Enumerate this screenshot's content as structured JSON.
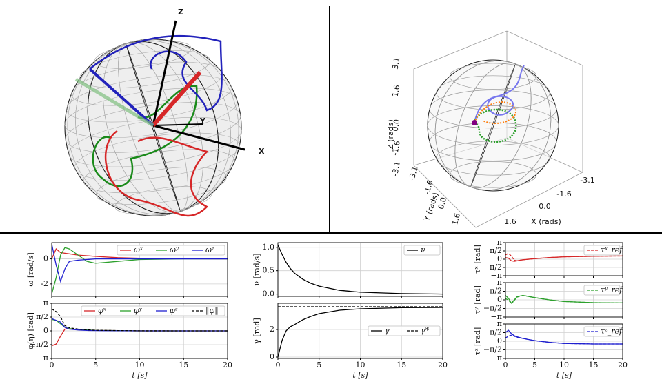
{
  "sphere_left": {
    "axes": [
      "Z",
      "Y",
      "X"
    ]
  },
  "sphere_right": {
    "axis_labels": [
      "Z (rads)",
      "Y (rads)",
      "X (rads)"
    ],
    "z_ticks": [
      "3.1",
      "1.6",
      "0.0",
      "-1.6",
      "-3.1"
    ],
    "y_ticks": [
      "-3.1",
      "-1.6",
      "0.0",
      "1.6"
    ],
    "x_ticks": [
      "1.6",
      "0.0",
      "-1.6",
      "-3.1"
    ]
  },
  "chart_data": [
    {
      "type": "line",
      "ylabel": "ω [rad/s]",
      "x": [
        0,
        0.5,
        1,
        1.5,
        2,
        3,
        4,
        5,
        7.5,
        10,
        15,
        20
      ],
      "xlim": [
        0,
        20
      ],
      "xticks": [
        0,
        5,
        10,
        15,
        20
      ],
      "show_xtick_labels": false,
      "ylim": [
        -3,
        1.3
      ],
      "yticks": [
        -2,
        0
      ],
      "grid": true,
      "legend": "upper right",
      "series": [
        {
          "name": "ωˣ",
          "color": "#d62728",
          "values": [
            0,
            0.8,
            0.5,
            0.45,
            0.4,
            0.3,
            0.25,
            0.2,
            0.1,
            0.05,
            0.01,
            0
          ]
        },
        {
          "name": "ωʸ",
          "color": "#2ca02c",
          "values": [
            -2.8,
            -1.5,
            0.3,
            0.9,
            0.8,
            0.3,
            -0.2,
            -0.35,
            -0.2,
            -0.05,
            0,
            0
          ]
        },
        {
          "name": "ωᶻ",
          "color": "#1f1fcf",
          "values": [
            1.2,
            -0.5,
            -1.8,
            -0.8,
            -0.2,
            -0.1,
            -0.05,
            0,
            0,
            0,
            0,
            0
          ]
        }
      ]
    },
    {
      "type": "line",
      "ylabel": "φ(η) [rad]",
      "xlabel": "t [s]",
      "x": [
        0,
        0.5,
        1,
        1.5,
        2,
        3,
        4,
        5,
        7.5,
        10,
        15,
        20
      ],
      "xlim": [
        0,
        20
      ],
      "xticks": [
        0,
        5,
        10,
        15,
        20
      ],
      "show_xtick_labels": true,
      "ylim": [
        -3.1416,
        3.1416
      ],
      "yticks": [
        {
          "value": -3.1416,
          "label": "−π"
        },
        {
          "value": -1.5708,
          "label": "−π/2"
        },
        0,
        {
          "value": 1.5708,
          "label": "π/2"
        },
        {
          "value": 3.1416,
          "label": "π"
        }
      ],
      "grid": true,
      "legend": "upper right",
      "series": [
        {
          "name": "φˣ",
          "color": "#d62728",
          "values": [
            -1.7,
            -1.5,
            -0.6,
            0.2,
            0.25,
            0.15,
            0.1,
            0.05,
            0.02,
            0,
            0,
            0
          ]
        },
        {
          "name": "φʸ",
          "color": "#2ca02c",
          "values": [
            1.3,
            1.2,
            0.8,
            0.4,
            0.25,
            0.15,
            0.1,
            0.05,
            0.02,
            0,
            0,
            0
          ]
        },
        {
          "name": "φᶻ",
          "color": "#1f1fcf",
          "values": [
            1.4,
            1.2,
            1.0,
            0.4,
            0.2,
            0.1,
            0.05,
            0.03,
            0.01,
            0,
            0,
            0
          ]
        },
        {
          "name": "‖φ‖",
          "color": "#000000",
          "dash": true,
          "values": [
            2.5,
            2.2,
            1.6,
            0.6,
            0.35,
            0.2,
            0.12,
            0.07,
            0.03,
            0.01,
            0,
            0
          ]
        }
      ]
    },
    {
      "type": "line",
      "ylabel": "ν [rad/s]",
      "x": [
        0,
        0.5,
        1,
        1.5,
        2,
        3,
        4,
        5,
        7.5,
        10,
        15,
        20
      ],
      "xlim": [
        0,
        20
      ],
      "xticks": [
        0,
        5,
        10,
        15,
        20
      ],
      "show_xtick_labels": false,
      "ylim": [
        -0.05,
        1.1
      ],
      "yticks": [
        {
          "value": 0,
          "label": "0.0"
        },
        {
          "value": 0.5,
          "label": "0.5"
        },
        {
          "value": 1,
          "label": "1.0"
        }
      ],
      "grid": true,
      "legend": "upper right",
      "series": [
        {
          "name": "ν",
          "color": "#000000",
          "values": [
            1.05,
            0.85,
            0.68,
            0.55,
            0.45,
            0.32,
            0.23,
            0.17,
            0.08,
            0.04,
            0.01,
            0
          ]
        }
      ]
    },
    {
      "type": "line",
      "ylabel": "γ [rad]",
      "xlabel": "t [s]",
      "x": [
        0,
        0.5,
        1,
        1.5,
        2,
        3,
        4,
        5,
        7.5,
        10,
        15,
        20
      ],
      "xlim": [
        0,
        20
      ],
      "xticks": [
        0,
        5,
        10,
        15,
        20
      ],
      "show_xtick_labels": true,
      "ylim": [
        -0.1,
        3.9
      ],
      "yticks": [
        0,
        2
      ],
      "grid": true,
      "legend": "center right",
      "series": [
        {
          "name": "γ",
          "color": "#000000",
          "values": [
            0,
            1.2,
            1.9,
            2.2,
            2.35,
            2.7,
            2.95,
            3.15,
            3.4,
            3.5,
            3.58,
            3.6
          ]
        },
        {
          "name": "γ*",
          "color": "#000000",
          "dash": true,
          "values": [
            3.65,
            3.65,
            3.65,
            3.65,
            3.65,
            3.65,
            3.65,
            3.65,
            3.65,
            3.65,
            3.65,
            3.65
          ]
        }
      ]
    },
    {
      "type": "line",
      "ylabel": "τˣ [rad]",
      "x": [
        0,
        0.5,
        1,
        1.5,
        2,
        3,
        4,
        5,
        7.5,
        10,
        15,
        20
      ],
      "xlim": [
        0,
        20
      ],
      "xticks": [
        0,
        5,
        10,
        15,
        20
      ],
      "show_xtick_labels": false,
      "ylim": [
        -3.1416,
        3.1416
      ],
      "yticks": [
        {
          "value": -3.1416,
          "label": "−π"
        },
        {
          "value": -1.5708,
          "label": "−π/2"
        },
        0,
        {
          "value": 1.5708,
          "label": "π/2"
        },
        {
          "value": 3.1416,
          "label": "π"
        }
      ],
      "grid": true,
      "legend": "upper right",
      "series": [
        {
          "color": "#d62728",
          "values": [
            0.3,
            0.2,
            -0.3,
            -0.4,
            -0.3,
            -0.1,
            0,
            0.1,
            0.3,
            0.45,
            0.55,
            0.6
          ]
        },
        {
          "name": "τˣ_ref",
          "color": "#d62728",
          "dash": true,
          "values": [
            0.8,
            1.1,
            0.6,
            -0.2,
            -0.3,
            -0.1,
            0,
            0.1,
            0.3,
            0.45,
            0.55,
            0.6
          ]
        }
      ]
    },
    {
      "type": "line",
      "ylabel": "τʸ [rad]",
      "x": [
        0,
        0.5,
        1,
        1.5,
        2,
        3,
        4,
        5,
        7.5,
        10,
        15,
        20
      ],
      "xlim": [
        0,
        20
      ],
      "xticks": [
        0,
        5,
        10,
        15,
        20
      ],
      "show_xtick_labels": false,
      "ylim": [
        -3.1416,
        3.1416
      ],
      "yticks": [
        {
          "value": -3.1416,
          "label": "−π"
        },
        {
          "value": -1.5708,
          "label": "−π/2"
        },
        0,
        {
          "value": 1.5708,
          "label": "π/2"
        },
        {
          "value": 3.1416,
          "label": "π"
        }
      ],
      "grid": true,
      "legend": "upper right",
      "series": [
        {
          "color": "#2ca02c",
          "values": [
            0.8,
            0.3,
            -0.6,
            0,
            0.6,
            0.8,
            0.6,
            0.4,
            0,
            -0.3,
            -0.5,
            -0.55
          ]
        },
        {
          "name": "τʸ_ref",
          "color": "#2ca02c",
          "dash": true,
          "values": [
            0.2,
            0,
            -0.7,
            -0.1,
            0.5,
            0.8,
            0.6,
            0.4,
            0,
            -0.3,
            -0.5,
            -0.55
          ]
        }
      ]
    },
    {
      "type": "line",
      "ylabel": "τᶻ [rad]",
      "xlabel": "t [s]",
      "x": [
        0,
        0.5,
        1,
        1.5,
        2,
        3,
        4,
        5,
        7.5,
        10,
        15,
        20
      ],
      "xlim": [
        0,
        20
      ],
      "xticks": [
        0,
        5,
        10,
        15,
        20
      ],
      "show_xtick_labels": true,
      "ylim": [
        -3.1416,
        3.1416
      ],
      "yticks": [
        {
          "value": -3.1416,
          "label": "−π"
        },
        {
          "value": -1.5708,
          "label": "−π/2"
        },
        0,
        {
          "value": 1.5708,
          "label": "π/2"
        },
        {
          "value": 3.1416,
          "label": "π"
        }
      ],
      "grid": true,
      "legend": "upper right",
      "series": [
        {
          "color": "#1f1fcf",
          "values": [
            1.6,
            2.0,
            1.4,
            1.0,
            0.8,
            0.5,
            0.3,
            0.1,
            -0.2,
            -0.4,
            -0.5,
            -0.5
          ]
        },
        {
          "name": "τᶻ_ref",
          "color": "#1f1fcf",
          "dash": true,
          "values": [
            0.6,
            0.9,
            1.1,
            0.9,
            0.7,
            0.5,
            0.3,
            0.1,
            -0.2,
            -0.4,
            -0.5,
            -0.5
          ]
        }
      ]
    }
  ]
}
